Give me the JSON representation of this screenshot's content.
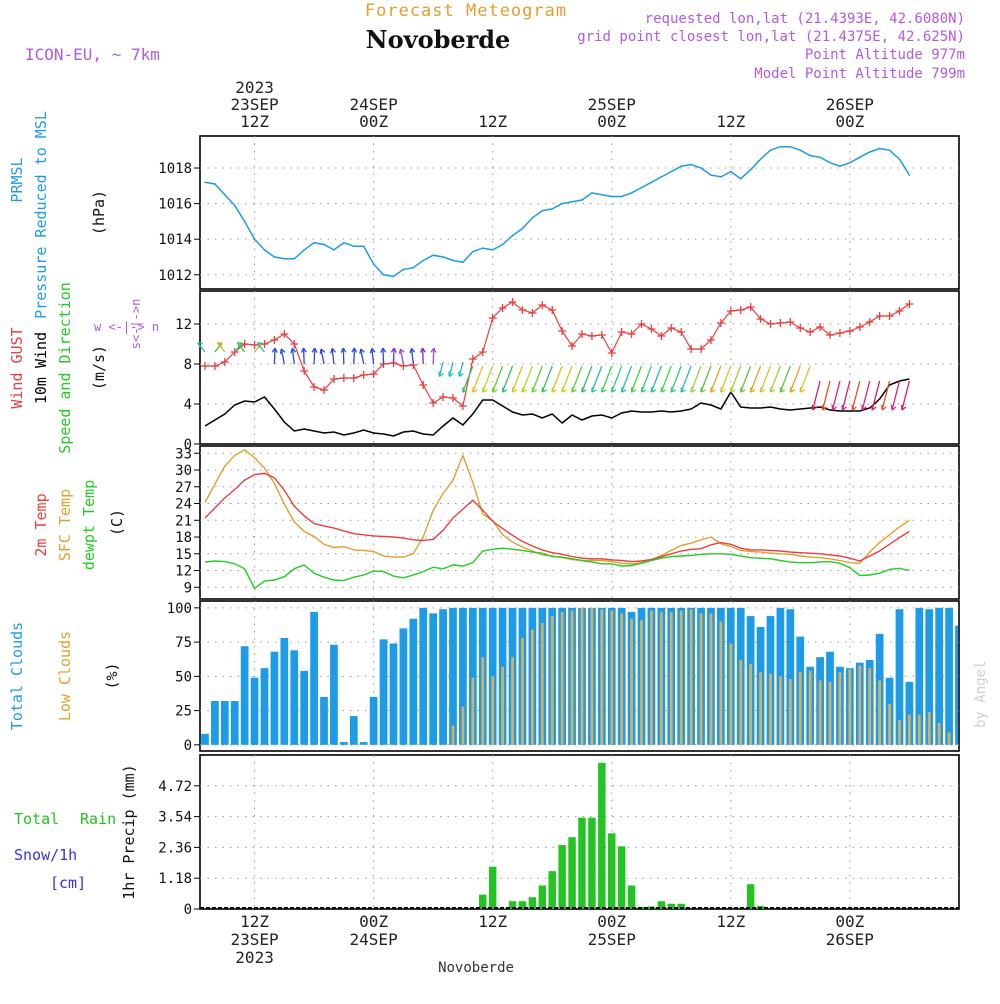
{
  "header": {
    "top_title": "Forecast Meteogram",
    "location": "Novoberde",
    "model": "ICON-EU, ~ 7km",
    "requested": "requested lon,lat (21.4393E, 42.6080N)",
    "gridpoint": "grid point closest lon,lat (21.4375E, 42.625N)",
    "point_altitude": "Point Altitude 977m",
    "model_altitude": "Model Point Altitude 799m",
    "bottom_label": "Novoberde",
    "watermark": "by Angel"
  },
  "colors": {
    "pressure": "#1e9be6",
    "gust": "#e84040",
    "wind": "#000000",
    "temp2m": "#e84040",
    "sfctemp": "#e0a030",
    "dewpt": "#22cc22",
    "total_clouds": "#1e9be6",
    "low_clouds": "#d4b060",
    "rain": "#22c422",
    "snow": "#3333dd",
    "purple": "#b05ae0",
    "grid": "#9a9a9a"
  },
  "time_axis": {
    "top_labels": [
      {
        "hour": 12,
        "lines": [
          "2023",
          "23SEP",
          "12Z"
        ]
      },
      {
        "hour": 24,
        "lines": [
          "24SEP",
          "00Z"
        ]
      },
      {
        "hour": 36,
        "lines": [
          "12Z"
        ]
      },
      {
        "hour": 48,
        "lines": [
          "25SEP",
          "00Z"
        ]
      },
      {
        "hour": 60,
        "lines": [
          "12Z"
        ]
      },
      {
        "hour": 72,
        "lines": [
          "26SEP",
          "00Z"
        ]
      }
    ],
    "bottom_labels": [
      {
        "hour": 12,
        "lines": [
          "12Z",
          "23SEP",
          "2023"
        ]
      },
      {
        "hour": 24,
        "lines": [
          "00Z",
          "24SEP"
        ]
      },
      {
        "hour": 36,
        "lines": [
          "12Z"
        ]
      },
      {
        "hour": 48,
        "lines": [
          "00Z",
          "25SEP"
        ]
      },
      {
        "hour": 60,
        "lines": [
          "12Z"
        ]
      },
      {
        "hour": 72,
        "lines": [
          "00Z",
          "26SEP"
        ]
      }
    ]
  },
  "chart_data": [
    {
      "type": "line",
      "panel": "pressure",
      "left_labels": [
        "PRMSL",
        "Pressure Reduced to MSL"
      ],
      "ylabel": "(hPa)",
      "yticks": [
        1012,
        1014,
        1016,
        1018
      ],
      "ylim": [
        1011.2,
        1019.8
      ],
      "x_start_hour": 7,
      "series": [
        {
          "values": [
            1017.2,
            1017.1,
            1016.5,
            1015.9,
            1015.0,
            1014.0,
            1013.4,
            1013.0,
            1012.9,
            1012.9,
            1013.4,
            1013.8,
            1013.7,
            1013.4,
            1013.8,
            1013.6,
            1013.6,
            1012.6,
            1012.0,
            1011.9,
            1012.3,
            1012.4,
            1012.8,
            1013.1,
            1013.0,
            1012.8,
            1012.7,
            1013.3,
            1013.5,
            1013.4,
            1013.7,
            1014.2,
            1014.6,
            1015.2,
            1015.6,
            1015.7,
            1016.0,
            1016.1,
            1016.2,
            1016.6,
            1016.5,
            1016.4,
            1016.4,
            1016.6,
            1016.9,
            1017.2,
            1017.5,
            1017.8,
            1018.1,
            1018.2,
            1018.0,
            1017.6,
            1017.5,
            1017.8,
            1017.4,
            1017.9,
            1018.5,
            1019.0,
            1019.2,
            1019.2,
            1019.0,
            1018.7,
            1018.6,
            1018.3,
            1018.1,
            1018.3,
            1018.6,
            1018.9,
            1019.1,
            1019.0,
            1018.5,
            1017.6
          ]
        }
      ]
    },
    {
      "type": "line",
      "panel": "wind",
      "left_labels": [
        "Wind GUST",
        "10m Wind",
        "Speed and Direction"
      ],
      "ylabel": "(m/s)",
      "compass_label": "w <-|-> n",
      "compass_label_vertical": "s<-|->n",
      "yticks": [
        0,
        4,
        8,
        12
      ],
      "ylim": [
        0,
        15.3
      ],
      "x_start_hour": 7,
      "series": [
        {
          "name": "Wind GUST",
          "values": [
            7.8,
            7.8,
            8.2,
            9.2,
            10.0,
            9.9,
            10.0,
            10.4,
            11.0,
            10.0,
            7.3,
            5.7,
            5.4,
            6.5,
            6.6,
            6.6,
            6.9,
            7.0,
            8.0,
            8.1,
            7.8,
            7.9,
            5.9,
            4.1,
            4.7,
            4.6,
            3.8,
            8.5,
            9.2,
            12.6,
            13.6,
            14.2,
            13.4,
            13.1,
            13.9,
            13.4,
            11.3,
            9.8,
            11.0,
            10.8,
            10.9,
            9.1,
            11.2,
            11.0,
            12.0,
            11.5,
            10.8,
            11.6,
            11.2,
            9.5,
            9.5,
            10.4,
            12.1,
            13.3,
            13.4,
            13.7,
            12.5,
            12.0,
            12.1,
            12.2,
            11.6,
            11.2,
            11.7,
            10.9,
            11.1,
            11.3,
            11.7,
            12.2,
            12.8,
            12.8,
            13.3,
            14.0
          ]
        },
        {
          "name": "10m Wind",
          "values": [
            1.8,
            2.4,
            3.0,
            3.9,
            4.3,
            4.2,
            4.7,
            3.5,
            2.2,
            1.3,
            1.5,
            1.3,
            1.1,
            1.2,
            0.9,
            1.1,
            1.4,
            1.1,
            1.0,
            0.8,
            1.2,
            1.3,
            1.0,
            0.9,
            1.8,
            2.6,
            1.9,
            3.0,
            4.4,
            4.4,
            3.8,
            3.2,
            2.9,
            3.0,
            2.6,
            3.0,
            2.1,
            2.9,
            2.4,
            2.8,
            2.9,
            2.6,
            3.1,
            3.3,
            3.2,
            3.2,
            3.3,
            3.2,
            3.3,
            3.5,
            4.1,
            3.9,
            3.5,
            5.2,
            3.7,
            3.6,
            3.6,
            3.7,
            3.5,
            3.4,
            3.5,
            3.6,
            3.7,
            3.4,
            3.3,
            3.3,
            3.3,
            3.6,
            4.5,
            5.9,
            6.3,
            6.5
          ]
        }
      ]
    },
    {
      "type": "line",
      "panel": "temperature",
      "left_labels": [
        "2m Temp",
        "SFC Temp",
        "dewpt Temp"
      ],
      "ylabel": "(C)",
      "yticks": [
        9,
        12,
        15,
        18,
        21,
        24,
        27,
        30,
        33
      ],
      "ylim": [
        6.9,
        34.3
      ],
      "x_start_hour": 7,
      "series": [
        {
          "name": "2m Temp",
          "values": [
            21.4,
            23.2,
            25.0,
            26.5,
            28.2,
            29.2,
            29.4,
            28.6,
            26.4,
            23.5,
            21.8,
            20.4,
            20.0,
            19.6,
            19.1,
            18.6,
            18.4,
            18.2,
            18.1,
            18.0,
            17.8,
            17.5,
            17.4,
            17.6,
            19.2,
            21.4,
            23.0,
            24.6,
            22.8,
            20.8,
            19.5,
            18.3,
            17.2,
            16.4,
            15.7,
            15.2,
            14.9,
            14.5,
            14.2,
            14.1,
            14.1,
            13.9,
            13.8,
            13.6,
            13.7,
            14.0,
            14.5,
            15.0,
            15.5,
            15.8,
            15.9,
            16.6,
            17.0,
            16.7,
            16.0,
            15.7,
            15.7,
            15.6,
            15.5,
            15.3,
            15.2,
            15.1,
            15.0,
            14.8,
            14.6,
            14.2,
            13.7,
            14.6,
            15.5,
            16.7,
            17.9,
            19.0
          ]
        },
        {
          "name": "SFC Temp",
          "values": [
            24.2,
            27.5,
            30.7,
            32.6,
            33.6,
            32.2,
            30.3,
            27.6,
            23.9,
            20.7,
            19.0,
            18.1,
            16.7,
            16.1,
            16.3,
            15.7,
            15.6,
            15.4,
            14.6,
            14.4,
            14.4,
            15.0,
            18.0,
            22.8,
            25.8,
            28.2,
            32.6,
            27.8,
            22.1,
            20.9,
            18.4,
            17.1,
            16.2,
            15.5,
            14.8,
            14.6,
            14.3,
            14.0,
            13.8,
            13.8,
            13.8,
            13.6,
            13.3,
            13.2,
            13.4,
            13.9,
            14.7,
            15.6,
            16.5,
            16.9,
            17.5,
            18.0,
            16.8,
            16.3,
            15.6,
            15.4,
            15.3,
            15.1,
            15.0,
            14.9,
            14.6,
            14.4,
            14.3,
            14.1,
            13.8,
            13.4,
            13.3,
            15.3,
            17.0,
            18.4,
            19.8,
            21.0
          ]
        },
        {
          "name": "dewpt Temp",
          "values": [
            13.5,
            13.7,
            13.6,
            13.2,
            12.3,
            8.8,
            10.1,
            10.3,
            10.9,
            12.3,
            13.0,
            11.5,
            10.8,
            10.3,
            10.2,
            10.8,
            11.2,
            11.9,
            11.8,
            11.0,
            10.7,
            11.2,
            11.8,
            12.6,
            12.3,
            13.0,
            12.8,
            13.4,
            15.5,
            15.8,
            16.0,
            15.8,
            15.6,
            15.3,
            15.1,
            14.5,
            14.4,
            14.1,
            13.8,
            13.5,
            13.2,
            13.2,
            12.8,
            12.9,
            13.3,
            13.8,
            14.2,
            14.5,
            14.6,
            14.7,
            14.9,
            15.0,
            15.0,
            14.9,
            14.6,
            14.3,
            14.2,
            14.1,
            13.8,
            13.5,
            13.4,
            13.4,
            13.5,
            13.6,
            13.3,
            12.5,
            11.1,
            11.2,
            11.5,
            12.2,
            12.4,
            12.0
          ]
        }
      ]
    },
    {
      "type": "bar",
      "panel": "clouds",
      "left_labels": [
        "Total Clouds",
        "Low Clouds"
      ],
      "ylabel": "(%)",
      "yticks": [
        0,
        25,
        50,
        75,
        100
      ],
      "ylim": [
        -4.5,
        105
      ],
      "x_start_hour": 7,
      "series": [
        {
          "name": "Total Clouds",
          "values": [
            8,
            32,
            32,
            32,
            72,
            49,
            56,
            68,
            78,
            69,
            54,
            97,
            35,
            73,
            2,
            21,
            2,
            35,
            77,
            74,
            85,
            92,
            100,
            96,
            99,
            100,
            100,
            100,
            100,
            100,
            100,
            100,
            100,
            100,
            100,
            100,
            100,
            100,
            100,
            100,
            100,
            100,
            100,
            97,
            100,
            100,
            100,
            100,
            100,
            100,
            100,
            100,
            100,
            100,
            100,
            94,
            86,
            94,
            100,
            99,
            79,
            57,
            64,
            68,
            57,
            56,
            60,
            62,
            81,
            49,
            99,
            46,
            100,
            99,
            100,
            100,
            87
          ]
        },
        {
          "name": "Low Clouds",
          "values": [
            0,
            0,
            0,
            0,
            0,
            0,
            0,
            0,
            0,
            0,
            0,
            0,
            0,
            0,
            0,
            0,
            0,
            0,
            0,
            0,
            0,
            0,
            0,
            0,
            0,
            14,
            28,
            49,
            64,
            50,
            57,
            64,
            78,
            84,
            89,
            94,
            97,
            98,
            100,
            100,
            99,
            98,
            96,
            92,
            91,
            98,
            97,
            97,
            98,
            99,
            96,
            96,
            90,
            74,
            62,
            59,
            53,
            52,
            50,
            48,
            53,
            54,
            47,
            46,
            53,
            55,
            58,
            56,
            47,
            30,
            18,
            22,
            22,
            24,
            16,
            9
          ]
        }
      ]
    },
    {
      "type": "bar",
      "panel": "precip",
      "left_labels": [
        "Total",
        "Rain",
        "Snow/1h",
        "[cm]"
      ],
      "ylabel": "1hr Precip (mm)",
      "yticks": [
        0,
        1.18,
        2.36,
        3.54,
        4.72
      ],
      "ylim": [
        0,
        5.9
      ],
      "x_start_hour": 7,
      "series": [
        {
          "name": "Rain",
          "values": [
            0,
            0,
            0,
            0,
            0,
            0,
            0,
            0,
            0,
            0,
            0,
            0,
            0,
            0,
            0,
            0,
            0,
            0,
            0,
            0,
            0,
            0,
            0,
            0,
            0,
            0,
            0,
            0,
            0.55,
            1.62,
            0.04,
            0.3,
            0.3,
            0.45,
            0.9,
            1.45,
            2.45,
            2.75,
            3.5,
            3.5,
            5.6,
            2.9,
            2.4,
            0.9,
            0.08,
            0.1,
            0.3,
            0.2,
            0.2,
            0,
            0,
            0,
            0,
            0,
            0,
            0.95,
            0.12,
            0,
            0,
            0,
            0,
            0,
            0,
            0,
            0,
            0,
            0,
            0,
            0,
            0,
            0,
            0,
            0,
            0,
            0,
            0
          ]
        }
      ]
    }
  ]
}
